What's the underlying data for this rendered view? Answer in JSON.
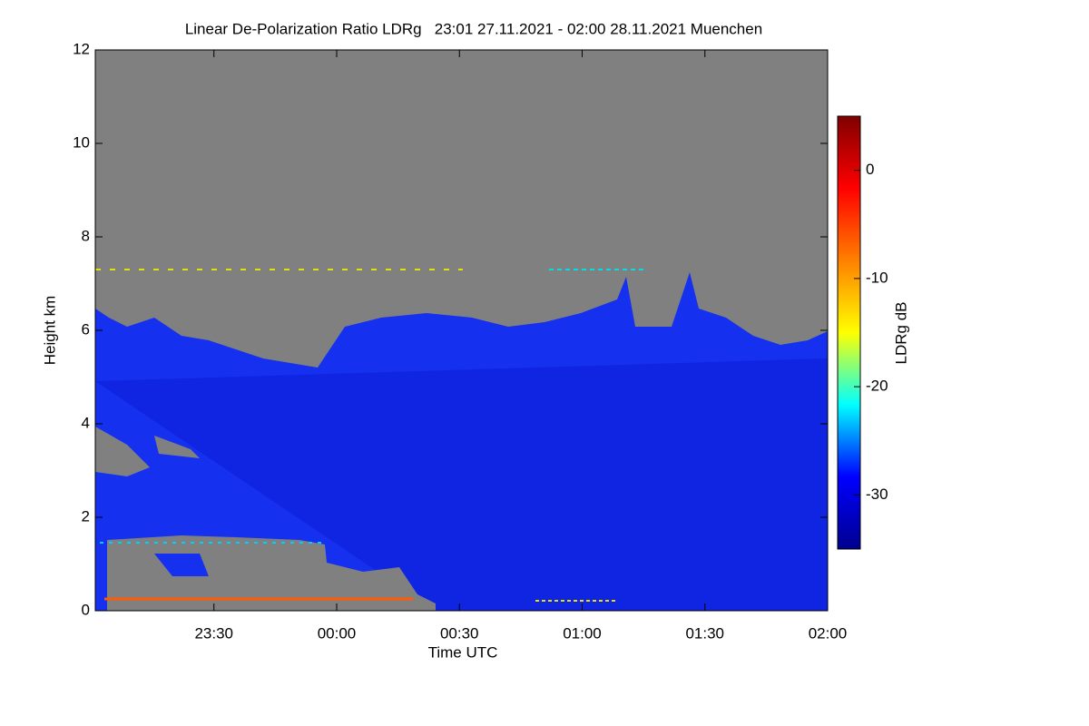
{
  "chart_data": {
    "type": "heatmap",
    "title": "Linear De-Polarization Ratio LDRg   23:01 27.11.2021 - 02:00 28.11.2021 Muenchen",
    "x_label": "Time UTC",
    "y_label": "Height km",
    "xlim": [
      "23:01",
      "02:00"
    ],
    "xticks": [
      "23:30",
      "00:00",
      "00:30",
      "01:00",
      "01:30",
      "02:00"
    ],
    "ylim": [
      0,
      12
    ],
    "yticks": [
      0,
      2,
      4,
      6,
      8,
      10,
      12
    ],
    "colorbar_label": "LDRg dB",
    "clim": [
      -35,
      5
    ],
    "cticks": [
      0,
      -10,
      -20,
      -30
    ],
    "colormap": [
      "#00008f",
      "#0000ff",
      "#00ffff",
      "#ffff00",
      "#ff8000",
      "#ff0000",
      "#800000"
    ]
  }
}
